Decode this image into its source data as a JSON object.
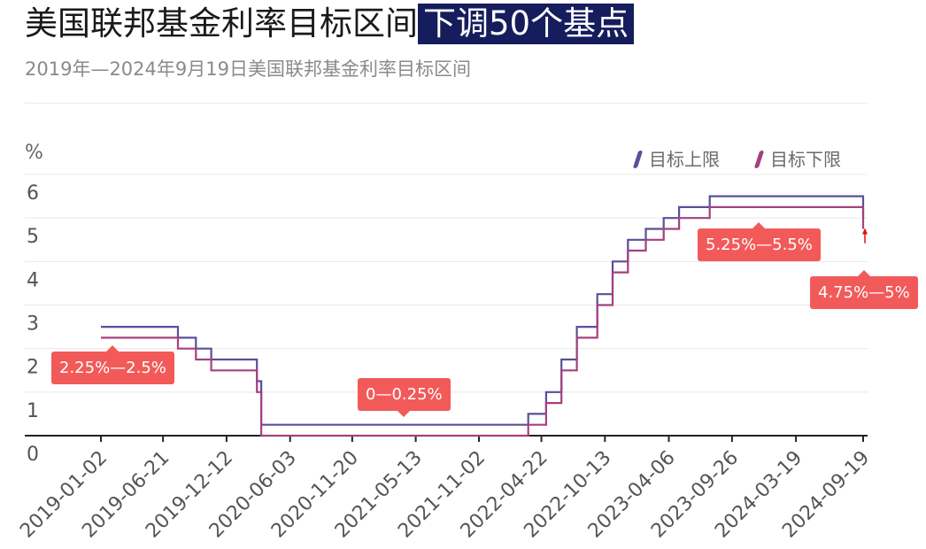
{
  "header": {
    "title": "美国联邦基金利率目标区间",
    "highlight": "下调50个基点",
    "subtitle": "2019年—2024年9月19日美国联邦基金利率目标区间"
  },
  "colors": {
    "upper": "#5a4f9a",
    "lower": "#a5407f",
    "callout": "#f25a5a",
    "highlight_bg": "#161d5c",
    "arrow": "#e01010"
  },
  "chart_data": {
    "type": "line",
    "ylabel": "%",
    "ylim": [
      0,
      6
    ],
    "yticks": [
      0,
      1,
      2,
      3,
      4,
      5,
      6
    ],
    "xticks": [
      "2019-01-02",
      "2019-06-21",
      "2019-12-12",
      "2020-06-03",
      "2020-11-20",
      "2021-05-13",
      "2021-11-02",
      "2022-04-22",
      "2022-10-13",
      "2023-04-06",
      "2023-09-26",
      "2024-03-19",
      "2024-09-19"
    ],
    "xlim": [
      "2019-01-02",
      "2024-09-19"
    ],
    "series": [
      {
        "name": "目标上限",
        "color": "#5a4f9a",
        "points": [
          [
            "2019-01-02",
            2.5
          ],
          [
            "2019-08-01",
            2.25
          ],
          [
            "2019-09-19",
            2.0
          ],
          [
            "2019-10-31",
            1.75
          ],
          [
            "2020-03-04",
            1.25
          ],
          [
            "2020-03-16",
            0.25
          ],
          [
            "2022-03-17",
            0.5
          ],
          [
            "2022-05-05",
            1.0
          ],
          [
            "2022-06-16",
            1.75
          ],
          [
            "2022-07-28",
            2.5
          ],
          [
            "2022-09-22",
            3.25
          ],
          [
            "2022-11-03",
            4.0
          ],
          [
            "2022-12-15",
            4.5
          ],
          [
            "2023-02-02",
            4.75
          ],
          [
            "2023-03-23",
            5.0
          ],
          [
            "2023-05-04",
            5.25
          ],
          [
            "2023-07-27",
            5.5
          ],
          [
            "2024-09-18",
            5.5
          ],
          [
            "2024-09-19",
            5.0
          ]
        ]
      },
      {
        "name": "目标下限",
        "color": "#a5407f",
        "points": [
          [
            "2019-01-02",
            2.25
          ],
          [
            "2019-08-01",
            2.0
          ],
          [
            "2019-09-19",
            1.75
          ],
          [
            "2019-10-31",
            1.5
          ],
          [
            "2020-03-04",
            1.0
          ],
          [
            "2020-03-16",
            0.0
          ],
          [
            "2022-03-17",
            0.25
          ],
          [
            "2022-05-05",
            0.75
          ],
          [
            "2022-06-16",
            1.5
          ],
          [
            "2022-07-28",
            2.25
          ],
          [
            "2022-09-22",
            3.0
          ],
          [
            "2022-11-03",
            3.75
          ],
          [
            "2022-12-15",
            4.25
          ],
          [
            "2023-02-02",
            4.5
          ],
          [
            "2023-03-23",
            4.75
          ],
          [
            "2023-05-04",
            5.0
          ],
          [
            "2023-07-27",
            5.25
          ],
          [
            "2024-09-18",
            5.25
          ],
          [
            "2024-09-19",
            4.75
          ]
        ]
      }
    ],
    "annotations": [
      {
        "text": "2.25%—2.5%",
        "date": "2019-01-02",
        "value": 2.25
      },
      {
        "text": "0—0.25%",
        "date": "2021-02-01",
        "value": 0.25
      },
      {
        "text": "5.25%—5.5%",
        "date": "2023-12-15",
        "value": 5.25
      },
      {
        "text": "4.75%—5%",
        "date": "2024-09-19",
        "value": 4.75
      }
    ]
  }
}
